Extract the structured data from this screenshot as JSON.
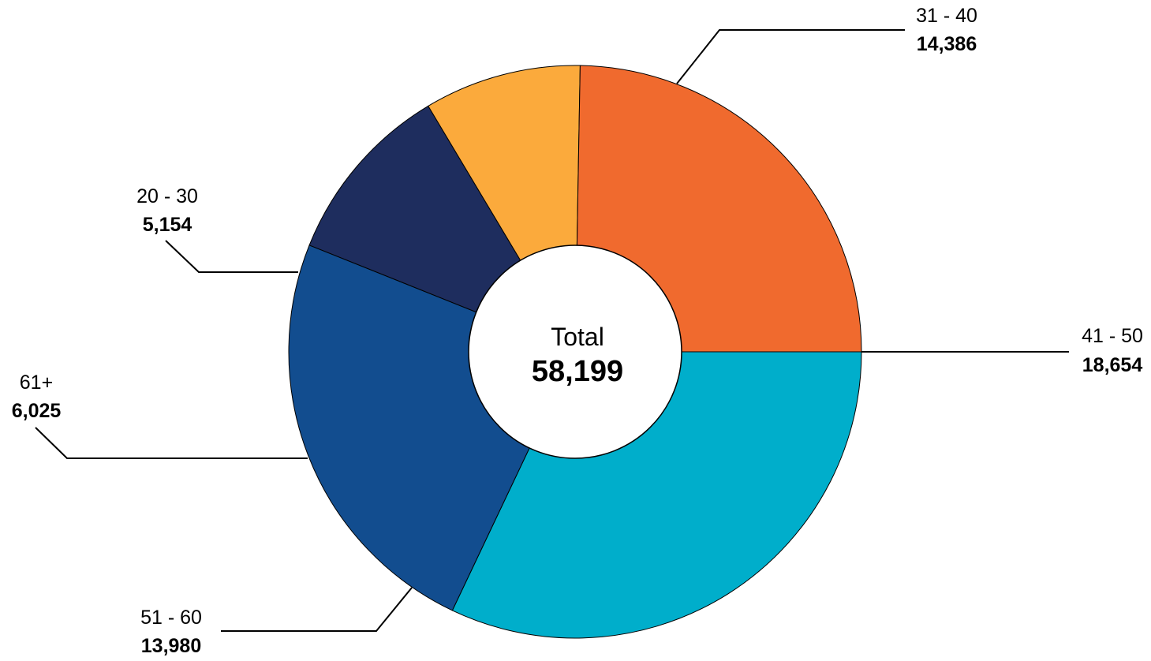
{
  "chart_data": {
    "type": "pie",
    "variant": "donut",
    "center_label": "Total",
    "center_value": "58,199",
    "categories": [
      "41 - 50",
      "51 - 60",
      "61+",
      "20 - 30",
      "31 - 40"
    ],
    "values": [
      18654,
      13980,
      6025,
      5154,
      14386
    ],
    "value_labels": [
      "18,654",
      "13,980",
      "6,025",
      "5,154",
      "14,386"
    ],
    "colors": [
      "#00AECB",
      "#124D8F",
      "#1E2D5E",
      "#FBAA3C",
      "#F06A2E"
    ]
  }
}
